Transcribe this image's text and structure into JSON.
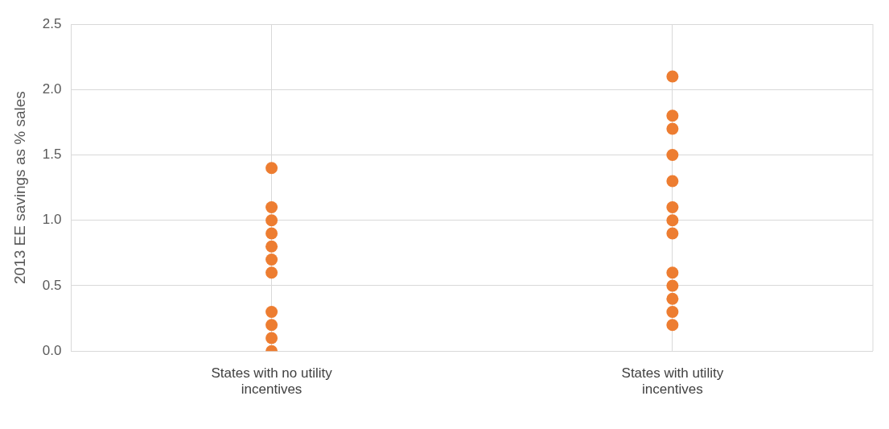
{
  "chart_data": {
    "type": "scatter",
    "ylabel": "2013 EE savings as % sales",
    "categories": [
      "States with no utility incentives",
      "States with utility incentives"
    ],
    "series": [
      {
        "color": "#ed7d31",
        "x": [
          "States with no utility incentives",
          "States with no utility incentives",
          "States with no utility incentives",
          "States with no utility incentives",
          "States with no utility incentives",
          "States with no utility incentives",
          "States with no utility incentives",
          "States with no utility incentives",
          "States with no utility incentives",
          "States with no utility incentives",
          "States with no utility incentives"
        ],
        "values": [
          1.4,
          1.1,
          1.0,
          0.9,
          0.8,
          0.7,
          0.6,
          0.3,
          0.2,
          0.1,
          0.0
        ]
      },
      {
        "color": "#ed7d31",
        "x": [
          "States with utility incentives",
          "States with utility incentives",
          "States with utility incentives",
          "States with utility incentives",
          "States with utility incentives",
          "States with utility incentives",
          "States with utility incentives",
          "States with utility incentives",
          "States with utility incentives",
          "States with utility incentives",
          "States with utility incentives",
          "States with utility incentives",
          "States with utility incentives"
        ],
        "values": [
          2.1,
          1.8,
          1.7,
          1.5,
          1.3,
          1.1,
          1.0,
          0.9,
          0.6,
          0.5,
          0.4,
          0.3,
          0.2
        ]
      }
    ],
    "ylim": [
      0,
      2.5
    ],
    "yticks": [
      {
        "value": 0,
        "label": "0.0"
      },
      {
        "value": 0.5,
        "label": "0.5"
      },
      {
        "value": 1,
        "label": "1.0"
      },
      {
        "value": 1.5,
        "label": "1.5"
      },
      {
        "value": 2,
        "label": "2.0"
      },
      {
        "value": 2.5,
        "label": "2.5"
      }
    ],
    "grid": true,
    "marker": "circle",
    "legend": false
  }
}
